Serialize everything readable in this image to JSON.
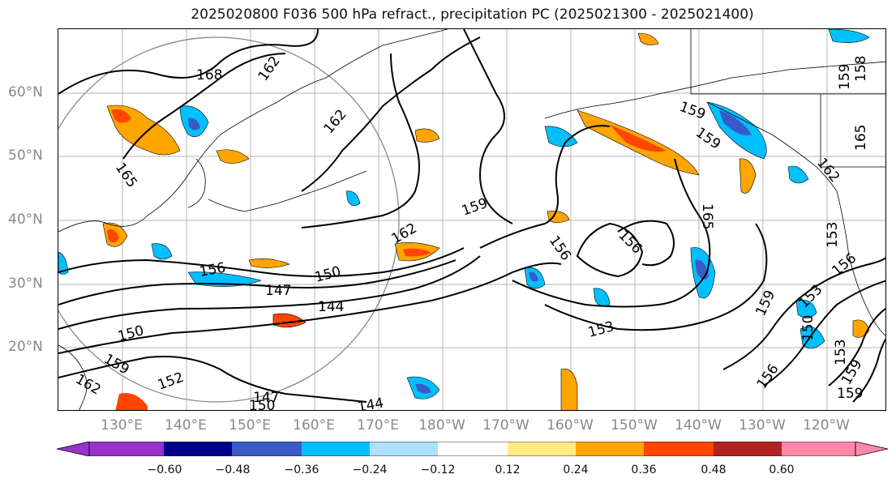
{
  "title": "2025020800 F036 500 hPa refract., precipitation PC (2025021300 - 2025021400)",
  "lat_labels": [
    "60°N",
    "50°N",
    "40°N",
    "30°N",
    "20°N"
  ],
  "lon_labels": [
    "130°E",
    "140°E",
    "150°E",
    "160°E",
    "170°E",
    "180°W",
    "170°W",
    "160°W",
    "150°W",
    "140°W",
    "130°W",
    "120°W"
  ],
  "colorbar": {
    "ticks": [
      "−0.60",
      "−0.48",
      "−0.36",
      "−0.24",
      "−0.12",
      "0.12",
      "0.24",
      "0.36",
      "0.48",
      "0.60"
    ],
    "colors": [
      "#9932CC",
      "#00008B",
      "#3A5BC7",
      "#00BFFF",
      "#ADE0FF",
      "#FFFFFF",
      "#FFEB82",
      "#FFA500",
      "#FF4500",
      "#B22222",
      "#FF88AA"
    ]
  },
  "contour_labels": [
    "168",
    "162",
    "165",
    "162",
    "159",
    "159",
    "165",
    "159",
    "165",
    "162",
    "159",
    "156",
    "156",
    "162",
    "159",
    "156",
    "150",
    "147",
    "144",
    "150",
    "159",
    "162",
    "152",
    "147",
    "150",
    "153",
    "144",
    "153",
    "159",
    "150",
    "153",
    "156",
    "156",
    "159",
    "153",
    "158"
  ]
}
